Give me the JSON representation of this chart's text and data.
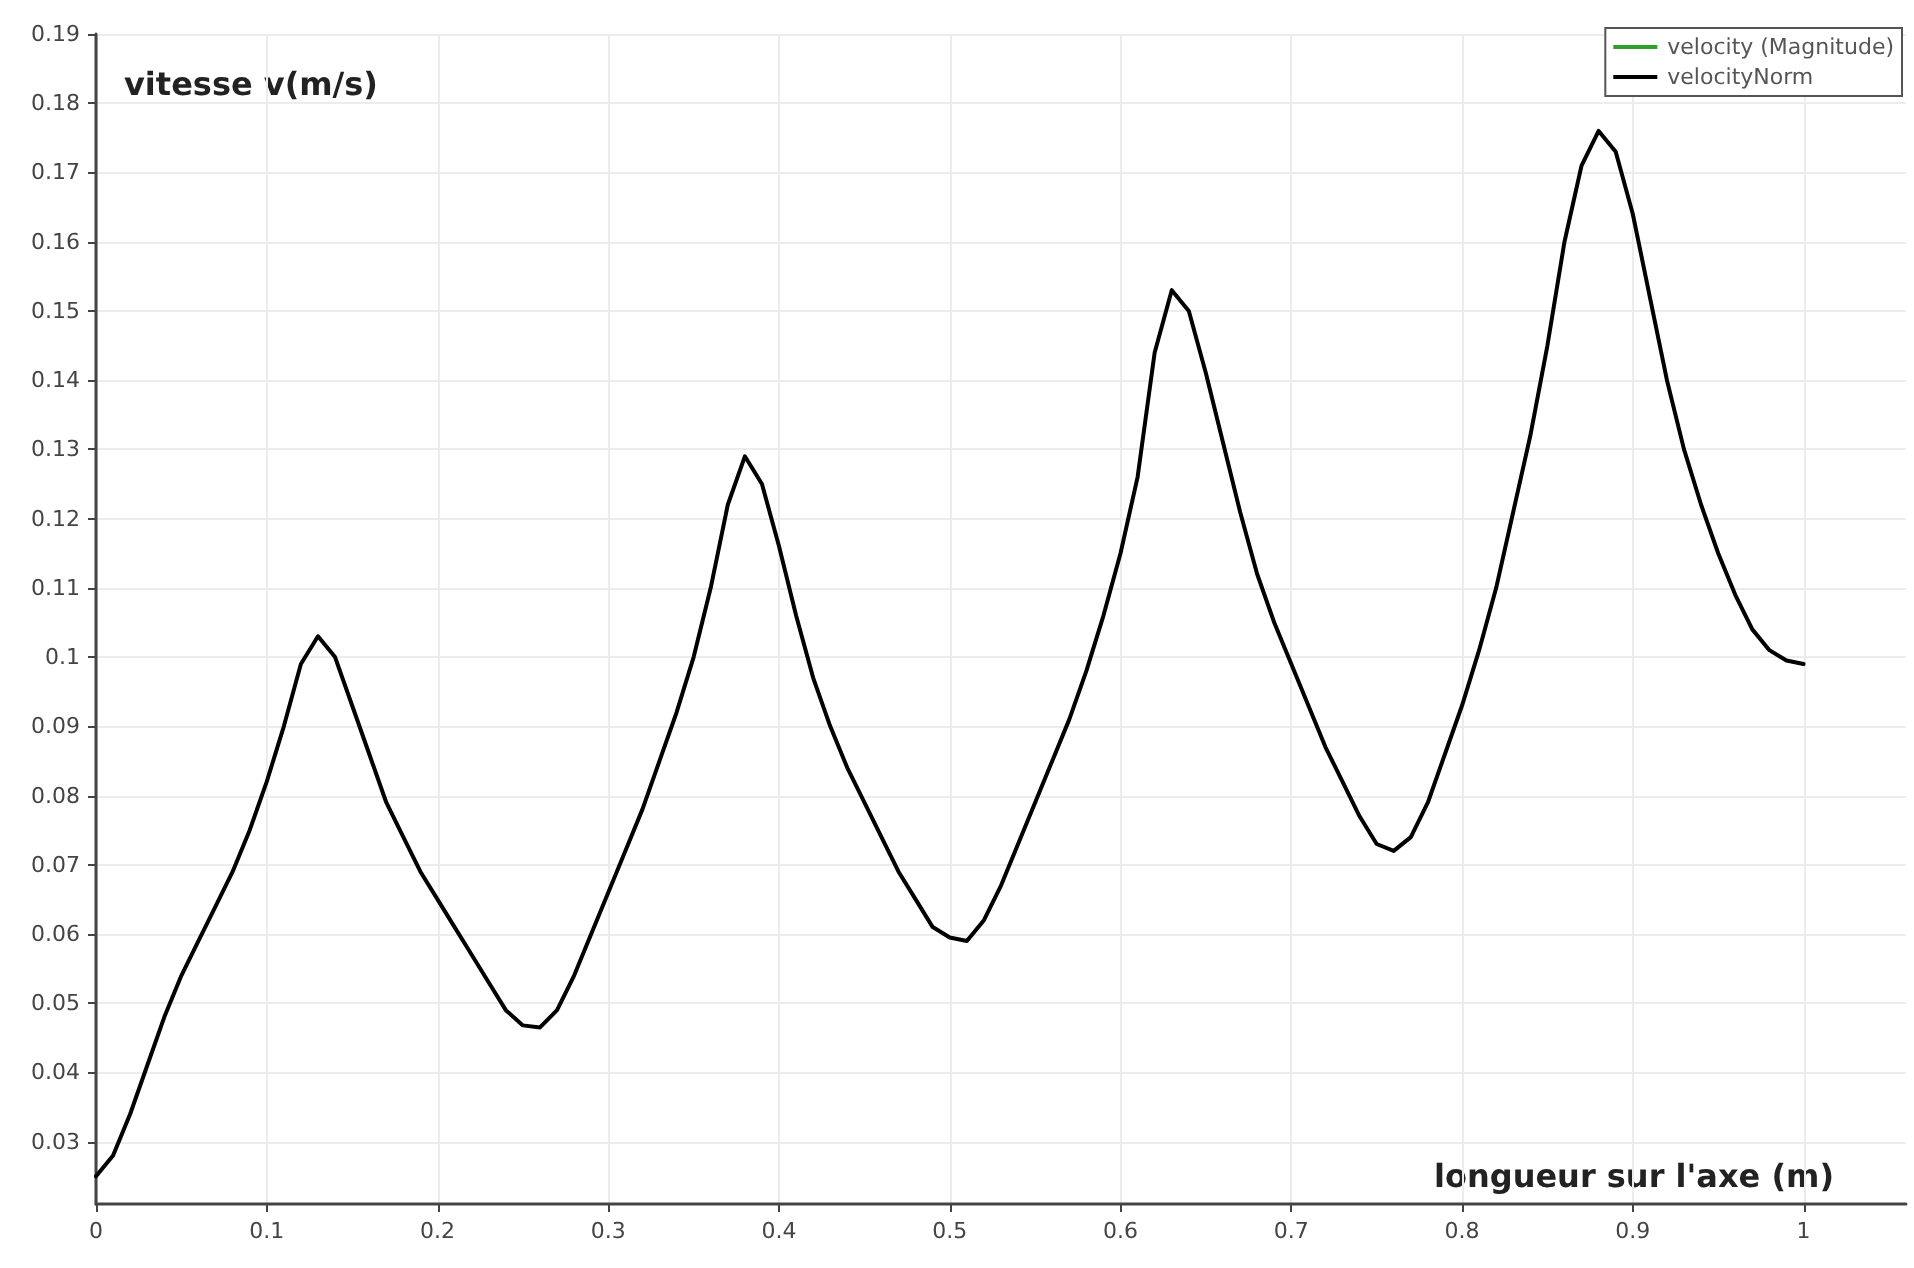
{
  "chart_data": {
    "type": "line",
    "xlabel": "longueur sur l'axe (m)",
    "ylabel": "vitesse v(m/s)",
    "x": [
      0,
      0.01,
      0.02,
      0.03,
      0.04,
      0.05,
      0.06,
      0.07,
      0.08,
      0.09,
      0.1,
      0.11,
      0.12,
      0.13,
      0.14,
      0.15,
      0.16,
      0.17,
      0.18,
      0.19,
      0.2,
      0.21,
      0.22,
      0.23,
      0.24,
      0.25,
      0.26,
      0.27,
      0.28,
      0.29,
      0.3,
      0.31,
      0.32,
      0.33,
      0.34,
      0.35,
      0.36,
      0.37,
      0.38,
      0.39,
      0.4,
      0.41,
      0.42,
      0.43,
      0.44,
      0.45,
      0.46,
      0.47,
      0.48,
      0.49,
      0.5,
      0.51,
      0.52,
      0.53,
      0.54,
      0.55,
      0.56,
      0.57,
      0.58,
      0.59,
      0.6,
      0.61,
      0.62,
      0.63,
      0.64,
      0.65,
      0.66,
      0.67,
      0.68,
      0.69,
      0.7,
      0.71,
      0.72,
      0.73,
      0.74,
      0.75,
      0.76,
      0.77,
      0.78,
      0.79,
      0.8,
      0.81,
      0.82,
      0.83,
      0.84,
      0.85,
      0.86,
      0.87,
      0.88,
      0.89,
      0.9,
      0.91,
      0.92,
      0.93,
      0.94,
      0.95,
      0.96,
      0.97,
      0.98,
      0.99,
      1
    ],
    "series": [
      {
        "name": "velocity (Magnitude)",
        "color": "#2ca02c",
        "values": [
          null,
          null,
          null,
          null,
          null,
          null,
          null,
          null,
          null,
          null,
          null,
          null,
          null,
          null,
          null,
          null,
          null,
          null,
          null,
          null,
          null,
          null,
          null,
          null,
          null,
          null,
          null,
          null,
          null,
          null,
          null,
          null,
          null,
          null,
          null,
          null,
          null,
          null,
          null,
          null,
          null,
          null,
          null,
          null,
          null,
          null,
          null,
          null,
          null,
          null,
          null,
          null,
          null,
          null,
          null,
          null,
          null,
          null,
          null,
          null,
          null,
          null,
          null,
          null,
          null,
          null,
          null,
          null,
          null,
          null,
          null,
          null,
          null,
          null,
          null,
          null,
          null,
          null,
          null,
          null,
          null,
          null,
          null,
          null,
          null,
          null,
          null,
          null,
          null,
          null,
          null,
          null,
          null,
          null,
          null,
          null,
          null,
          null,
          null,
          null,
          null
        ]
      },
      {
        "name": "velocityNorm",
        "color": "#000000",
        "values": [
          0.025,
          0.028,
          0.034,
          0.041,
          0.048,
          0.054,
          0.059,
          0.064,
          0.069,
          0.075,
          0.082,
          0.09,
          0.099,
          0.103,
          0.1,
          0.093,
          0.086,
          0.079,
          0.074,
          0.069,
          0.065,
          0.061,
          0.057,
          0.053,
          0.049,
          0.0468,
          0.0465,
          0.049,
          0.054,
          0.06,
          0.066,
          0.072,
          0.078,
          0.085,
          0.092,
          0.1,
          0.11,
          0.122,
          0.129,
          0.125,
          0.116,
          0.106,
          0.097,
          0.09,
          0.084,
          0.079,
          0.074,
          0.069,
          0.065,
          0.061,
          0.0595,
          0.059,
          0.062,
          0.067,
          0.073,
          0.079,
          0.085,
          0.091,
          0.098,
          0.106,
          0.115,
          0.126,
          0.144,
          0.153,
          0.15,
          0.141,
          0.131,
          0.121,
          0.112,
          0.105,
          0.099,
          0.093,
          0.087,
          0.082,
          0.077,
          0.073,
          0.072,
          0.074,
          0.079,
          0.086,
          0.093,
          0.101,
          0.11,
          0.121,
          0.132,
          0.145,
          0.16,
          0.171,
          0.176,
          0.173,
          0.164,
          0.152,
          0.14,
          0.13,
          0.122,
          0.115,
          0.109,
          0.104,
          0.101,
          0.0995,
          0.099
        ]
      }
    ],
    "xlim": [
      0,
      1.06
    ],
    "xticks": [
      0,
      0.1,
      0.2,
      0.3,
      0.4,
      0.5,
      0.6,
      0.7,
      0.8,
      0.9,
      1
    ],
    "ylim": [
      0.021,
      0.19
    ],
    "yticks": [
      0.03,
      0.04,
      0.05,
      0.06,
      0.07,
      0.08,
      0.09,
      0.1,
      0.11,
      0.12,
      0.13,
      0.14,
      0.15,
      0.16,
      0.17,
      0.18,
      0.19
    ],
    "grid": true,
    "legend": "top right",
    "marker": "none",
    "line_style": "solid"
  }
}
